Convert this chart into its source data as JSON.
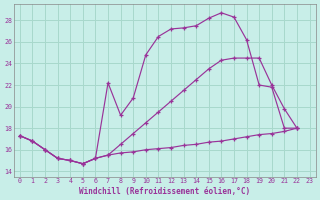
{
  "xlabel": "Windchill (Refroidissement éolien,°C)",
  "bg_color": "#c8eee8",
  "grid_color": "#a8d8cc",
  "line_color": "#993399",
  "xlim": [
    -0.5,
    23.5
  ],
  "ylim": [
    13.5,
    29.5
  ],
  "xticks": [
    0,
    1,
    2,
    3,
    4,
    5,
    6,
    7,
    8,
    9,
    10,
    11,
    12,
    13,
    14,
    15,
    16,
    17,
    18,
    19,
    20,
    21,
    22,
    23
  ],
  "yticks": [
    14,
    16,
    18,
    20,
    22,
    24,
    26,
    28
  ],
  "curve1_x": [
    0,
    1,
    2,
    3,
    4,
    5,
    6,
    7,
    8,
    9,
    10,
    11,
    12,
    13,
    14,
    15,
    16,
    17,
    18,
    19,
    20,
    21,
    22
  ],
  "curve1_y": [
    17.3,
    16.8,
    16.0,
    15.2,
    15.0,
    14.7,
    15.2,
    22.2,
    19.2,
    20.8,
    24.8,
    26.5,
    27.2,
    27.3,
    27.5,
    28.2,
    28.7,
    28.3,
    26.2,
    22.0,
    21.8,
    18.0,
    18.0
  ],
  "curve2_x": [
    0,
    1,
    2,
    3,
    4,
    5,
    6,
    7,
    8,
    9,
    10,
    11,
    12,
    13,
    14,
    15,
    16,
    17,
    18,
    19,
    20,
    21,
    22
  ],
  "curve2_y": [
    17.3,
    16.8,
    16.0,
    15.2,
    15.0,
    14.7,
    15.2,
    15.5,
    16.5,
    17.5,
    18.5,
    19.5,
    20.5,
    21.5,
    22.5,
    23.5,
    24.3,
    24.5,
    24.5,
    24.5,
    22.0,
    19.8,
    18.0
  ],
  "curve3_x": [
    0,
    1,
    2,
    3,
    4,
    5,
    6,
    7,
    8,
    9,
    10,
    11,
    12,
    13,
    14,
    15,
    16,
    17,
    18,
    19,
    20,
    21,
    22
  ],
  "curve3_y": [
    17.3,
    16.8,
    16.0,
    15.2,
    15.0,
    14.7,
    15.2,
    15.5,
    15.7,
    15.8,
    16.0,
    16.1,
    16.2,
    16.4,
    16.5,
    16.7,
    16.8,
    17.0,
    17.2,
    17.4,
    17.5,
    17.7,
    18.0
  ]
}
